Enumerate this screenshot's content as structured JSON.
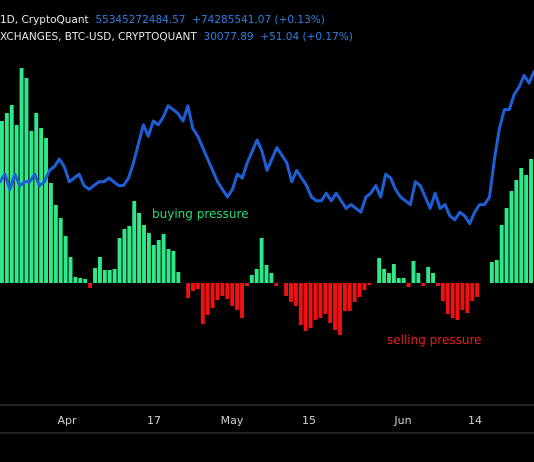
{
  "header": {
    "line1": {
      "symbol_text": "1D, CryptoQuant",
      "value": "55345272484.57",
      "change": "+74285541.07 (+0.13%)"
    },
    "line2": {
      "symbol_text": "XCHANGES, BTC-USD, CRYPTOQUANT",
      "value": "30077.89",
      "change": "+51.04 (+0.17%)"
    }
  },
  "annotations": {
    "buying": "buying pressure",
    "selling": "selling pressure"
  },
  "colors": {
    "background": "#000000",
    "positive_bar": "#2ee88a",
    "negative_bar": "#ee1111",
    "price_line": "#1f5fd6",
    "buying_text": "#22dd77",
    "selling_text": "#e02020",
    "axis_text": "#d0d0d0"
  },
  "chart_data": {
    "type": "bar",
    "xaxis_labels": [
      "Apr",
      "17",
      "May",
      "15",
      "Jun",
      "14"
    ],
    "series": [
      {
        "type": "bar",
        "values": [
          162,
          170,
          178,
          158,
          215,
          205,
          152,
          170,
          155,
          145,
          100,
          78,
          65,
          47,
          26,
          6,
          5,
          4,
          -5,
          15,
          26,
          13,
          13,
          14,
          45,
          54,
          57,
          82,
          70,
          58,
          50,
          38,
          43,
          49,
          34,
          32,
          11,
          0,
          -15,
          -8,
          -6,
          -41,
          -32,
          -25,
          -17,
          -13,
          -16,
          -23,
          -27,
          -35,
          -3,
          8,
          14,
          45,
          18,
          10,
          -3,
          0,
          -13,
          -19,
          -23,
          -42,
          -48,
          -45,
          -37,
          -35,
          -31,
          -40,
          -47,
          -52,
          -28,
          -28,
          -19,
          -14,
          -7,
          -2,
          0,
          25,
          14,
          10,
          19,
          5,
          5,
          -4,
          22,
          10,
          -3,
          16,
          10,
          -3,
          -18,
          -31,
          -35,
          -37,
          -27,
          -30,
          -18,
          -14,
          0,
          0,
          21,
          23,
          58,
          75,
          92,
          103,
          115,
          108,
          124
        ],
        "zero_line_hidden": true
      },
      {
        "type": "line",
        "values": [
          1.4,
          1.6,
          1.2,
          1.6,
          1.3,
          1.4,
          1.4,
          1.6,
          1.3,
          1.4,
          1.7,
          1.8,
          2.0,
          1.8,
          1.4,
          1.5,
          1.6,
          1.3,
          1.2,
          1.3,
          1.4,
          1.4,
          1.5,
          1.4,
          1.3,
          1.3,
          1.5,
          1.9,
          2.4,
          2.9,
          2.6,
          3.0,
          2.9,
          3.1,
          3.4,
          3.3,
          3.2,
          3.0,
          3.4,
          2.8,
          2.6,
          2.3,
          2.0,
          1.7,
          1.4,
          1.2,
          1.0,
          1.2,
          1.6,
          1.5,
          1.9,
          2.2,
          2.5,
          2.2,
          1.7,
          2.0,
          2.3,
          2.1,
          1.9,
          1.4,
          1.7,
          1.5,
          1.3,
          1.0,
          0.9,
          0.9,
          1.1,
          0.9,
          1.1,
          0.9,
          0.7,
          0.8,
          0.7,
          0.6,
          1.0,
          1.1,
          1.3,
          1.0,
          1.6,
          1.5,
          1.2,
          1.0,
          0.9,
          0.8,
          1.4,
          1.3,
          1.0,
          0.7,
          1.1,
          0.7,
          0.8,
          0.5,
          0.4,
          0.6,
          0.5,
          0.3,
          0.6,
          0.8,
          0.8,
          1.0,
          2.0,
          2.8,
          3.3,
          3.3,
          3.7,
          3.9,
          4.2,
          4.0,
          4.3
        ]
      }
    ]
  }
}
